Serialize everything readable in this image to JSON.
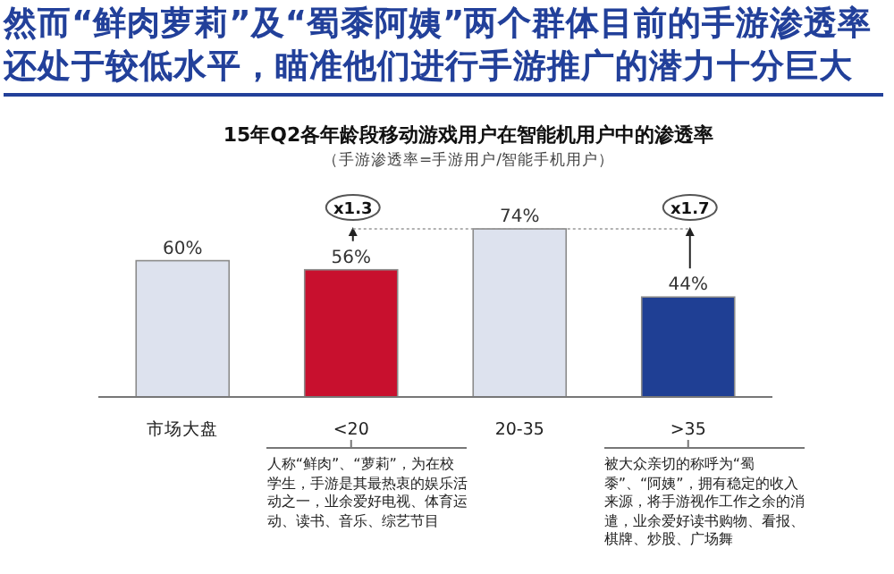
{
  "chart_data": {
    "type": "bar",
    "title": "15年Q2各年龄段移动游戏用户在智能机用户中的渗透率",
    "subtitle": "（手游渗透率=手游用户/智能手机用户）",
    "categories": [
      "市场大盘",
      "<20",
      "20-35",
      ">35"
    ],
    "values": [
      60,
      56,
      74,
      44
    ],
    "colors": [
      "#dde2ee",
      "#c8102e",
      "#dde2ee",
      "#1f3f94"
    ],
    "value_labels": [
      "60%",
      "56%",
      "74%",
      "44%"
    ],
    "annotations": [
      "然而“鲜肉萝莉”及“蜀黍阿姨”两个群体目前的手游渗透率还处于较低水平，瞄准他们进行手游推广的潜力十分巨大",
      {
        "text": "x1.3",
        "x": "<20",
        "y": 74
      },
      {
        "text": "x1.7",
        "x": ">35",
        "y": 74
      },
      "人称“鲜肉”、“萝莉”，为在校学生，手游是其最热衷的娱乐活动之一，业余爱好电视、体育运动、读书、音乐、综艺节目",
      "被大众亲切的称呼为“蜀黍”、“阿姨”，拥有稳定的收入来源，将手游视作工作之余的消遣，业余爱好读书购物、看报、棋牌、炒股、广场舞"
    ]
  }
}
